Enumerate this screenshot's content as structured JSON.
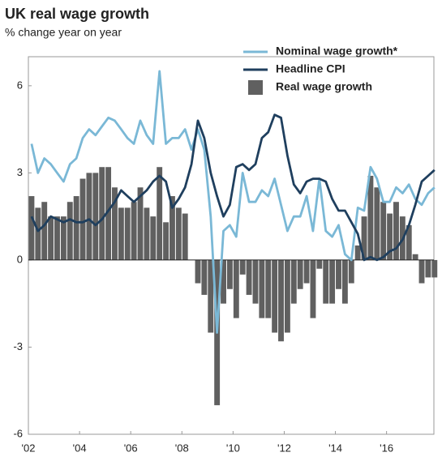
{
  "chart_data": {
    "type": "line",
    "title": "UK real wage growth",
    "subtitle": "% change year on year",
    "x": [
      2002,
      2002.25,
      2002.5,
      2002.75,
      2003,
      2003.25,
      2003.5,
      2003.75,
      2004,
      2004.25,
      2004.5,
      2004.75,
      2005,
      2005.25,
      2005.5,
      2005.75,
      2006,
      2006.25,
      2006.5,
      2006.75,
      2007,
      2007.25,
      2007.5,
      2007.75,
      2008,
      2008.25,
      2008.5,
      2008.75,
      2009,
      2009.25,
      2009.5,
      2009.75,
      2010,
      2010.25,
      2010.5,
      2010.75,
      2011,
      2011.25,
      2011.5,
      2011.75,
      2012,
      2012.25,
      2012.5,
      2012.75,
      2013,
      2013.25,
      2013.5,
      2013.75,
      2014,
      2014.25,
      2014.5,
      2014.75,
      2015,
      2015.25,
      2015.5,
      2015.75,
      2016,
      2016.25,
      2016.5,
      2016.75,
      2017,
      2017.25,
      2017.5,
      2017.75
    ],
    "series": [
      {
        "name": "Real wage growth",
        "type": "bar",
        "color": "#606060",
        "values": [
          2.2,
          1.8,
          2.0,
          1.5,
          1.5,
          1.5,
          2.0,
          2.2,
          2.8,
          3.0,
          3.0,
          3.2,
          3.2,
          2.5,
          1.8,
          1.8,
          2.0,
          2.5,
          1.8,
          1.5,
          3.2,
          1.3,
          2.2,
          1.8,
          1.6,
          0.0,
          -0.8,
          -1.2,
          -2.5,
          -5.0,
          -1.5,
          -1.0,
          -2.0,
          -0.5,
          -1.2,
          -1.5,
          -2.0,
          -2.0,
          -2.5,
          -2.8,
          -2.5,
          -1.5,
          -1.0,
          -0.8,
          -2.0,
          -0.3,
          -1.5,
          -1.5,
          -1.0,
          -1.5,
          -0.8,
          0.5,
          1.5,
          2.9,
          2.5,
          2.0,
          1.6,
          2.0,
          1.5,
          1.2,
          0.2,
          -0.8,
          -0.6,
          -0.6
        ]
      },
      {
        "name": "Nominal wage growth*",
        "type": "line",
        "color": "#7ab8d6",
        "values": [
          4.0,
          3.0,
          3.5,
          3.3,
          3.0,
          2.7,
          3.3,
          3.5,
          4.2,
          4.5,
          4.3,
          4.6,
          4.9,
          4.8,
          4.5,
          4.2,
          4.0,
          4.8,
          4.3,
          4.0,
          6.5,
          4.0,
          4.2,
          4.2,
          4.5,
          3.8,
          4.5,
          3.8,
          1.5,
          -2.5,
          1.0,
          1.2,
          0.8,
          3.0,
          2.0,
          2.0,
          2.4,
          2.2,
          2.8,
          1.9,
          1.0,
          1.5,
          1.5,
          2.2,
          1.0,
          2.8,
          1.0,
          0.8,
          1.2,
          0.2,
          0.0,
          1.8,
          1.7,
          3.2,
          2.8,
          2.0,
          2.0,
          2.5,
          2.3,
          2.6,
          2.1,
          1.9,
          2.3,
          2.5
        ]
      },
      {
        "name": "Headline CPI",
        "type": "line",
        "color": "#1f3f5e",
        "values": [
          1.5,
          1.0,
          1.2,
          1.5,
          1.4,
          1.3,
          1.4,
          1.3,
          1.3,
          1.4,
          1.2,
          1.4,
          1.7,
          2.0,
          2.4,
          2.2,
          2.0,
          2.2,
          2.4,
          2.7,
          2.9,
          2.7,
          1.8,
          2.1,
          2.5,
          3.3,
          4.8,
          4.2,
          3.0,
          2.2,
          1.5,
          1.9,
          3.2,
          3.3,
          3.1,
          3.3,
          4.2,
          4.4,
          5.0,
          4.9,
          3.6,
          2.6,
          2.3,
          2.7,
          2.8,
          2.8,
          2.7,
          2.1,
          1.7,
          1.7,
          1.3,
          0.9,
          0.0,
          0.1,
          0.0,
          0.1,
          0.3,
          0.4,
          0.7,
          1.2,
          1.9,
          2.7,
          2.9,
          3.1
        ]
      }
    ],
    "xlim": [
      2002,
      2017.85
    ],
    "xticks": [
      {
        "value": 2002,
        "label": "'02"
      },
      {
        "value": 2004,
        "label": "'04"
      },
      {
        "value": 2006,
        "label": "'06"
      },
      {
        "value": 2008,
        "label": "'08"
      },
      {
        "value": 2010,
        "label": "'10"
      },
      {
        "value": 2012,
        "label": "'12"
      },
      {
        "value": 2014,
        "label": "'14"
      },
      {
        "value": 2016,
        "label": "'16"
      }
    ],
    "ylim": [
      -6,
      7
    ],
    "yticks": [
      -6,
      -3,
      0,
      3,
      6
    ],
    "legend": "top-right"
  }
}
